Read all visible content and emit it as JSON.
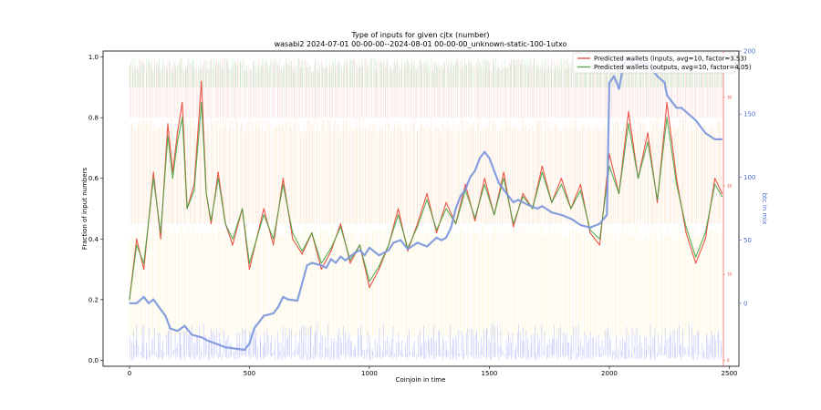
{
  "chart_data": {
    "type": "line",
    "title": "Type of inputs for given cjtx (number)",
    "subtitle": "wasabi2 2024-07-01 00-00-00--2024-08-01 00-00-00_unknown-static-100-1utxo",
    "xlabel": "Coinjoin in time",
    "ylabel": "Fraction of input numbers",
    "ylabel_right": "btc in mix",
    "xlim": [
      -110,
      2540
    ],
    "ylim": [
      -0.02,
      1.02
    ],
    "ylim_right": [
      -50,
      200
    ],
    "x_ticks": [
      "0",
      "500",
      "1000",
      "1500",
      "2000",
      "2500"
    ],
    "x_tick_values": [
      0,
      500,
      1000,
      1500,
      2000,
      2500
    ],
    "y_ticks": [
      "0.0",
      "0.2",
      "0.4",
      "0.6",
      "0.8",
      "1.0"
    ],
    "y_tick_values": [
      0.0,
      0.2,
      0.4,
      0.6,
      0.8,
      1.0
    ],
    "y_right_ticks": [
      "0",
      "50",
      "100",
      "150",
      "200"
    ],
    "y_right_tick_values": [
      0,
      50,
      100,
      150,
      200
    ],
    "inner_red_ticks": [
      "0",
      "10",
      "20",
      "30"
    ],
    "inner_red_tick_values": [
      0.0,
      0.283,
      0.575,
      0.867
    ],
    "legend": [
      {
        "label": "Predicted wallets (inputs, avg=10, factor=3.53)",
        "color": "#e8382a"
      },
      {
        "label": "Predicted wallets (outputs, avg=10, factor=4.05)",
        "color": "#3fa33f"
      }
    ],
    "legend_position": "top-right",
    "series": [
      {
        "name": "Predicted wallets (inputs, avg=10, factor=3.53)",
        "color": "#e8382a",
        "x": [
          0,
          30,
          60,
          100,
          130,
          160,
          180,
          200,
          220,
          240,
          270,
          300,
          320,
          340,
          370,
          400,
          430,
          470,
          500,
          530,
          560,
          600,
          640,
          680,
          720,
          760,
          800,
          840,
          880,
          920,
          960,
          1000,
          1040,
          1080,
          1120,
          1160,
          1200,
          1240,
          1280,
          1320,
          1360,
          1400,
          1440,
          1480,
          1520,
          1560,
          1600,
          1640,
          1680,
          1720,
          1760,
          1800,
          1840,
          1880,
          1920,
          1960,
          2000,
          2040,
          2080,
          2120,
          2160,
          2200,
          2240,
          2280,
          2320,
          2360,
          2400,
          2440,
          2470
        ],
        "values": [
          0.2,
          0.4,
          0.3,
          0.62,
          0.4,
          0.78,
          0.62,
          0.75,
          0.85,
          0.5,
          0.58,
          0.92,
          0.55,
          0.45,
          0.62,
          0.45,
          0.38,
          0.5,
          0.3,
          0.4,
          0.5,
          0.38,
          0.6,
          0.4,
          0.35,
          0.42,
          0.3,
          0.36,
          0.45,
          0.32,
          0.38,
          0.24,
          0.3,
          0.38,
          0.5,
          0.36,
          0.45,
          0.55,
          0.42,
          0.52,
          0.45,
          0.58,
          0.46,
          0.6,
          0.48,
          0.62,
          0.44,
          0.55,
          0.5,
          0.64,
          0.52,
          0.6,
          0.5,
          0.58,
          0.42,
          0.38,
          0.68,
          0.55,
          0.82,
          0.6,
          0.75,
          0.52,
          0.85,
          0.6,
          0.42,
          0.32,
          0.4,
          0.6,
          0.55
        ]
      },
      {
        "name": "Predicted wallets (outputs, avg=10, factor=4.05)",
        "color": "#3fa33f",
        "x": [
          0,
          30,
          60,
          100,
          130,
          160,
          180,
          200,
          220,
          240,
          270,
          300,
          320,
          340,
          370,
          400,
          430,
          470,
          500,
          530,
          560,
          600,
          640,
          680,
          720,
          760,
          800,
          840,
          880,
          920,
          960,
          1000,
          1040,
          1080,
          1120,
          1160,
          1200,
          1240,
          1280,
          1320,
          1360,
          1400,
          1440,
          1480,
          1520,
          1560,
          1600,
          1640,
          1680,
          1720,
          1760,
          1800,
          1840,
          1880,
          1920,
          1960,
          2000,
          2040,
          2080,
          2120,
          2160,
          2200,
          2240,
          2280,
          2320,
          2360,
          2400,
          2440,
          2470
        ],
        "values": [
          0.2,
          0.38,
          0.32,
          0.6,
          0.42,
          0.74,
          0.6,
          0.72,
          0.8,
          0.5,
          0.56,
          0.85,
          0.55,
          0.46,
          0.6,
          0.45,
          0.4,
          0.5,
          0.32,
          0.4,
          0.48,
          0.4,
          0.58,
          0.42,
          0.36,
          0.42,
          0.32,
          0.37,
          0.44,
          0.33,
          0.38,
          0.26,
          0.31,
          0.38,
          0.48,
          0.37,
          0.44,
          0.53,
          0.43,
          0.5,
          0.45,
          0.56,
          0.47,
          0.58,
          0.48,
          0.6,
          0.45,
          0.54,
          0.5,
          0.62,
          0.52,
          0.58,
          0.5,
          0.56,
          0.43,
          0.4,
          0.64,
          0.55,
          0.78,
          0.6,
          0.72,
          0.53,
          0.8,
          0.58,
          0.44,
          0.34,
          0.42,
          0.58,
          0.54
        ]
      },
      {
        "name": "btc in mix",
        "color": "#7b95db",
        "axis": "right",
        "x": [
          0,
          30,
          60,
          80,
          100,
          130,
          150,
          170,
          200,
          230,
          260,
          300,
          330,
          360,
          400,
          440,
          480,
          500,
          520,
          560,
          600,
          620,
          640,
          660,
          700,
          740,
          760,
          800,
          820,
          840,
          860,
          880,
          900,
          940,
          960,
          980,
          1000,
          1040,
          1080,
          1100,
          1130,
          1160,
          1200,
          1240,
          1280,
          1300,
          1320,
          1340,
          1360,
          1380,
          1400,
          1420,
          1440,
          1460,
          1480,
          1500,
          1540,
          1560,
          1580,
          1600,
          1620,
          1660,
          1700,
          1720,
          1760,
          1800,
          1840,
          1880,
          1920,
          1960,
          1990,
          2000,
          2020,
          2040,
          2060,
          2080,
          2100,
          2130,
          2160,
          2200,
          2230,
          2240,
          2260,
          2280,
          2300,
          2330,
          2360,
          2400,
          2440,
          2470
        ],
        "values": [
          0,
          0,
          5,
          0,
          3,
          -5,
          -10,
          -20,
          -22,
          -18,
          -25,
          -27,
          -30,
          -32,
          -35,
          -36,
          -37,
          -32,
          -20,
          -10,
          -8,
          -3,
          5,
          3,
          2,
          30,
          32,
          30,
          28,
          35,
          32,
          37,
          34,
          40,
          42,
          38,
          44,
          38,
          42,
          48,
          50,
          43,
          48,
          45,
          52,
          50,
          52,
          60,
          75,
          85,
          90,
          100,
          105,
          115,
          120,
          115,
          95,
          90,
          85,
          80,
          82,
          78,
          75,
          77,
          72,
          70,
          67,
          62,
          60,
          63,
          70,
          175,
          180,
          170,
          190,
          195,
          190,
          190,
          190,
          180,
          175,
          165,
          160,
          155,
          155,
          150,
          145,
          135,
          130,
          130
        ]
      }
    ],
    "background_bands": [
      {
        "name": "red",
        "color": "#f2a9a9",
        "ylo": 0.8,
        "yhi": 1.0
      },
      {
        "name": "green",
        "color": "#7fd18a",
        "ylo": 0.9,
        "yhi": 1.0
      },
      {
        "name": "orange",
        "color": "#f5c48a",
        "ylo": 0.45,
        "yhi": 0.8
      },
      {
        "name": "yellow",
        "color": "#f7e99a",
        "ylo": 0.08,
        "yhi": 0.45
      },
      {
        "name": "blue",
        "color": "#8e9cf5",
        "ylo": 0.0,
        "yhi": 0.12
      }
    ]
  }
}
